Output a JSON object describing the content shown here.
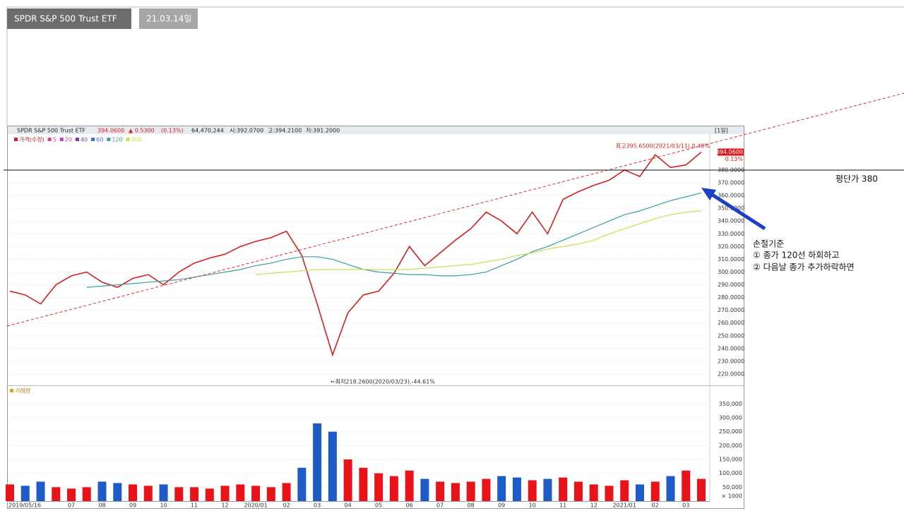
{
  "tabs": [
    "SPDR S&P 500 Trust ETF",
    "21.03.14일"
  ],
  "header": {
    "name": "SPDR S&P 500 Trust ETF",
    "price": "394.0600",
    "change": "▲ 0.5300",
    "pct": "(0.13%)",
    "volume": "64,470,244",
    "open": "시:392.0700",
    "high": "고:394.2100",
    "low": "저:391.2000",
    "period": "[1일]"
  },
  "annotations": {
    "avg_price": "평단가 380",
    "stop_title": "손절기준",
    "stop_1": "① 종가 120선 하회하고",
    "stop_2": "② 다음날 종가 추가하락하면"
  },
  "chart_data": [
    {
      "type": "line",
      "grid": true,
      "series": [
        {
          "name": "가격(수정)",
          "color": "#d62020",
          "values": [
            285,
            282,
            275,
            290,
            297,
            300,
            292,
            288,
            295,
            298,
            290,
            300,
            307,
            311,
            314,
            320,
            324,
            327,
            332,
            313,
            275,
            235,
            268,
            282,
            285,
            299,
            320,
            305,
            315,
            325,
            334,
            347,
            340,
            330,
            347,
            330,
            357,
            363,
            368,
            372,
            380,
            375,
            392,
            382,
            384,
            394.06
          ]
        },
        {
          "name": "120",
          "color": "#3c9ca0",
          "values": [
            null,
            null,
            null,
            null,
            null,
            288,
            289,
            290,
            291,
            292,
            293,
            294,
            296,
            298,
            300,
            302,
            305,
            307,
            310,
            312,
            312,
            310,
            306,
            302,
            300,
            299,
            298,
            298,
            297,
            297,
            298,
            300,
            305,
            310,
            316,
            320,
            325,
            330,
            335,
            340,
            345,
            348,
            352,
            356,
            359,
            362
          ]
        },
        {
          "name": "200",
          "color": "#c8e04a",
          "values": [
            null,
            null,
            null,
            null,
            null,
            null,
            null,
            null,
            null,
            null,
            null,
            null,
            null,
            null,
            null,
            null,
            298,
            299,
            300,
            301,
            302,
            302,
            302,
            302,
            302,
            302,
            302,
            303,
            304,
            305,
            306,
            308,
            310,
            313,
            315,
            318,
            320,
            322,
            325,
            330,
            334,
            338,
            342,
            345,
            347,
            348
          ]
        }
      ],
      "extra_legend": [
        {
          "name": "5",
          "color": "#e0409a"
        },
        {
          "name": "20",
          "color": "#c040c0"
        },
        {
          "name": "40",
          "color": "#7b3fa0"
        },
        {
          "name": "60",
          "color": "#3f6fd0"
        }
      ],
      "ylim": [
        211.7,
        408.2
      ],
      "yticks": [
        {
          "value": 220,
          "label": "220.0000"
        },
        {
          "value": 230,
          "label": "230.0000"
        },
        {
          "value": 240,
          "label": "240.0000"
        },
        {
          "value": 250,
          "label": "250.0000"
        },
        {
          "value": 260,
          "label": "260.0000"
        },
        {
          "value": 270,
          "label": "270.0000"
        },
        {
          "value": 280,
          "label": "280.0000"
        },
        {
          "value": 290,
          "label": "290.0000"
        },
        {
          "value": 300,
          "label": "300.0000"
        },
        {
          "value": 310,
          "label": "310.0000"
        },
        {
          "value": 320,
          "label": "320.0000"
        },
        {
          "value": 330,
          "label": "330.0000"
        },
        {
          "value": 340,
          "label": "340.0000"
        },
        {
          "value": 350,
          "label": "350.0000"
        },
        {
          "value": 360,
          "label": "360.0000"
        },
        {
          "value": 370,
          "label": "370.0000"
        },
        {
          "value": 380,
          "label": "380.0000"
        }
      ],
      "high_label": "최고395.6500(2021/03/11),0.40%",
      "low_label": "←최저218.2600(2020/03/23),-44.61%",
      "last_label": {
        "value": 394.06,
        "label": "394.0600"
      },
      "change_label": "0.13%"
    },
    {
      "type": "bar",
      "title": "거래량",
      "unit_label": "× 1000",
      "up_color": "#e8141a",
      "down_color": "#1e5bc6",
      "categories": [
        "2019/05/16",
        null,
        null,
        null,
        "07",
        null,
        "08",
        null,
        "09",
        null,
        "10",
        null,
        "11",
        null,
        "12",
        null,
        "2020/01",
        null,
        "02",
        null,
        "03",
        null,
        "04",
        null,
        "05",
        null,
        "06",
        null,
        "07",
        null,
        "08",
        null,
        "09",
        null,
        "10",
        null,
        "11",
        null,
        "12",
        null,
        "2021/01",
        null,
        "02",
        null,
        "03",
        null
      ],
      "values": [
        60000,
        55000,
        70000,
        50000,
        45000,
        50000,
        70000,
        65000,
        60000,
        55000,
        60000,
        50000,
        50000,
        45000,
        55000,
        60000,
        55000,
        50000,
        65000,
        120000,
        280000,
        250000,
        150000,
        120000,
        100000,
        90000,
        110000,
        80000,
        70000,
        65000,
        70000,
        80000,
        90000,
        85000,
        75000,
        80000,
        85000,
        70000,
        60000,
        55000,
        75000,
        60000,
        70000,
        90000,
        110000,
        80000
      ],
      "ylim": [
        0,
        412000
      ],
      "yticks": [
        {
          "value": 50000,
          "label": "50,000"
        },
        {
          "value": 100000,
          "label": "100,000"
        },
        {
          "value": 150000,
          "label": "150,000"
        },
        {
          "value": 200000,
          "label": "200,000"
        },
        {
          "value": 250000,
          "label": "250,000"
        },
        {
          "value": 300000,
          "label": "300,000"
        },
        {
          "value": 350000,
          "label": "350,000"
        }
      ]
    }
  ]
}
